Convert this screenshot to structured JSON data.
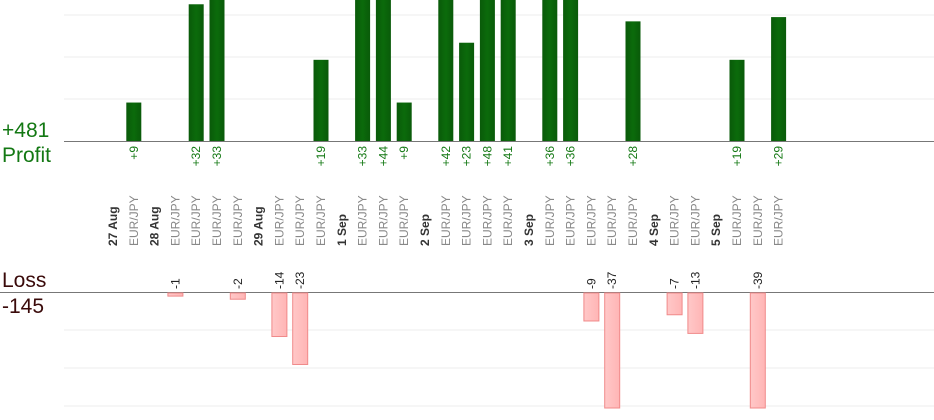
{
  "summary": {
    "profit_total": "+481",
    "profit_label": "Profit",
    "loss_label": "Loss",
    "loss_total": "-145"
  },
  "colors": {
    "profit_bar": "#0b6b0b",
    "profit_text": "#137813",
    "loss_bar": "#ffb5b5",
    "loss_border": "#f08a8a",
    "loss_text": "#222222",
    "date_text": "#333333",
    "pair_text": "#888888",
    "grid": "#eeeeee",
    "baseline": "#777777"
  },
  "chart_data": {
    "type": "bar",
    "profit_scale_max": 33,
    "loss_scale_max": 37,
    "columns": [
      {
        "label": "27 Aug",
        "kind": "date"
      },
      {
        "label": "EUR/JPY",
        "kind": "trade",
        "value": 9
      },
      {
        "label": "28 Aug",
        "kind": "date"
      },
      {
        "label": "EUR/JPY",
        "kind": "trade",
        "value": -1
      },
      {
        "label": "EUR/JPY",
        "kind": "trade",
        "value": 32
      },
      {
        "label": "EUR/JPY",
        "kind": "trade",
        "value": 33
      },
      {
        "label": "EUR/JPY",
        "kind": "trade",
        "value": -2
      },
      {
        "label": "29 Aug",
        "kind": "date"
      },
      {
        "label": "EUR/JPY",
        "kind": "trade",
        "value": -14
      },
      {
        "label": "EUR/JPY",
        "kind": "trade",
        "value": -23
      },
      {
        "label": "EUR/JPY",
        "kind": "trade",
        "value": 19
      },
      {
        "label": "1 Sep",
        "kind": "date"
      },
      {
        "label": "EUR/JPY",
        "kind": "trade",
        "value": 33
      },
      {
        "label": "EUR/JPY",
        "kind": "trade",
        "value": 44
      },
      {
        "label": "EUR/JPY",
        "kind": "trade",
        "value": 9
      },
      {
        "label": "2 Sep",
        "kind": "date"
      },
      {
        "label": "EUR/JPY",
        "kind": "trade",
        "value": 42
      },
      {
        "label": "EUR/JPY",
        "kind": "trade",
        "value": 23
      },
      {
        "label": "EUR/JPY",
        "kind": "trade",
        "value": 48
      },
      {
        "label": "EUR/JPY",
        "kind": "trade",
        "value": 41
      },
      {
        "label": "3 Sep",
        "kind": "date"
      },
      {
        "label": "EUR/JPY",
        "kind": "trade",
        "value": 36
      },
      {
        "label": "EUR/JPY",
        "kind": "trade",
        "value": 36
      },
      {
        "label": "EUR/JPY",
        "kind": "trade",
        "value": -9
      },
      {
        "label": "EUR/JPY",
        "kind": "trade",
        "value": -37
      },
      {
        "label": "EUR/JPY",
        "kind": "trade",
        "value": 28
      },
      {
        "label": "4 Sep",
        "kind": "date"
      },
      {
        "label": "EUR/JPY",
        "kind": "trade",
        "value": -7
      },
      {
        "label": "EUR/JPY",
        "kind": "trade",
        "value": -13
      },
      {
        "label": "5 Sep",
        "kind": "date"
      },
      {
        "label": "EUR/JPY",
        "kind": "trade",
        "value": 19
      },
      {
        "label": "EUR/JPY",
        "kind": "trade",
        "value": -39
      },
      {
        "label": "EUR/JPY",
        "kind": "trade",
        "value": 29
      }
    ]
  }
}
